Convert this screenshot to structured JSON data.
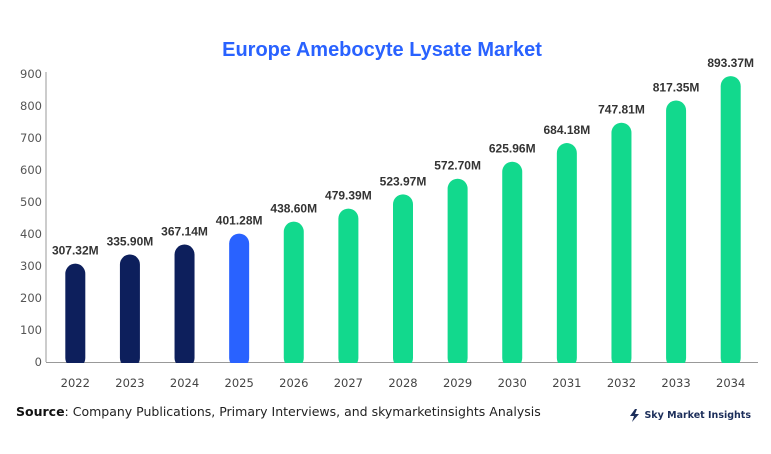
{
  "chart_data": {
    "type": "bar",
    "title": "Europe Amebocyte Lysate Market",
    "categories": [
      "2022",
      "2023",
      "2024",
      "2025",
      "2026",
      "2027",
      "2028",
      "2029",
      "2030",
      "2031",
      "2032",
      "2033",
      "2034"
    ],
    "values": [
      307.32,
      335.9,
      367.14,
      401.28,
      438.6,
      479.39,
      523.97,
      572.7,
      625.96,
      684.18,
      747.81,
      817.35,
      893.37
    ],
    "data_labels": [
      "307.32M",
      "335.90M",
      "367.14M",
      "401.28M",
      "438.60M",
      "479.39M",
      "523.97M",
      "572.70M",
      "625.96M",
      "684.18M",
      "747.81M",
      "817.35M",
      "893.37M"
    ],
    "bar_colors": [
      "#0d1f5c",
      "#0d1f5c",
      "#0d1f5c",
      "#2962ff",
      "#12d98d",
      "#12d98d",
      "#12d98d",
      "#12d98d",
      "#12d98d",
      "#12d98d",
      "#12d98d",
      "#12d98d",
      "#12d98d"
    ],
    "title_color": "#2962ff",
    "ylim": [
      0,
      900
    ],
    "yticks": [
      0,
      100,
      200,
      300,
      400,
      500,
      600,
      700,
      800,
      900
    ],
    "grid": false,
    "xlabel": "",
    "ylabel": ""
  },
  "footer": {
    "source_label": "Source",
    "source_text": ": Company Publications, Primary Interviews, and skymarketinsights Analysis"
  },
  "logo": {
    "text": "Sky Market Insights",
    "icon": "lightning-bolt-icon"
  }
}
